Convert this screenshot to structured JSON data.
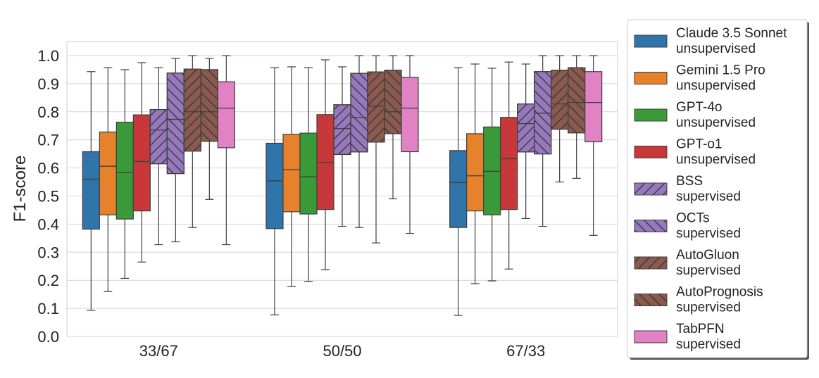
{
  "chart_data": {
    "type": "box",
    "title": "",
    "xlabel": "",
    "ylabel": "F1-score",
    "ylim": [
      0.0,
      1.0
    ],
    "yticks": [
      "0.0",
      "0.1",
      "0.2",
      "0.3",
      "0.4",
      "0.5",
      "0.6",
      "0.7",
      "0.8",
      "0.9",
      "1.0"
    ],
    "grid": "horizontal",
    "legend_position": "right",
    "categories": [
      "33/67",
      "50/50",
      "67/33"
    ],
    "series": [
      {
        "name": "Claude 3.5 Sonnet",
        "sub": "unsupervised",
        "color": "#2f74aa",
        "hatch": "none",
        "boxes": [
          {
            "whislo": 0.093,
            "q1": 0.382,
            "med": 0.56,
            "q3": 0.658,
            "whishi": 0.943
          },
          {
            "whislo": 0.077,
            "q1": 0.384,
            "med": 0.554,
            "q3": 0.688,
            "whishi": 0.957
          },
          {
            "whislo": 0.075,
            "q1": 0.388,
            "med": 0.548,
            "q3": 0.662,
            "whishi": 0.957
          }
        ]
      },
      {
        "name": "Gemini 1.5 Pro",
        "sub": "unsupervised",
        "color": "#e5822b",
        "hatch": "none",
        "boxes": [
          {
            "whislo": 0.16,
            "q1": 0.433,
            "med": 0.606,
            "q3": 0.728,
            "whishi": 0.957
          },
          {
            "whislo": 0.178,
            "q1": 0.444,
            "med": 0.594,
            "q3": 0.72,
            "whishi": 0.96
          },
          {
            "whislo": 0.188,
            "q1": 0.447,
            "med": 0.572,
            "q3": 0.722,
            "whishi": 0.97
          }
        ]
      },
      {
        "name": "GPT-4o",
        "sub": "unsupervised",
        "color": "#3a9a3a",
        "hatch": "none",
        "boxes": [
          {
            "whislo": 0.207,
            "q1": 0.418,
            "med": 0.583,
            "q3": 0.763,
            "whishi": 0.95
          },
          {
            "whislo": 0.196,
            "q1": 0.436,
            "med": 0.569,
            "q3": 0.724,
            "whishi": 0.957
          },
          {
            "whislo": 0.198,
            "q1": 0.433,
            "med": 0.588,
            "q3": 0.746,
            "whishi": 0.955
          }
        ]
      },
      {
        "name": "GPT-o1",
        "sub": "unsupervised",
        "color": "#c8373a",
        "hatch": "none",
        "boxes": [
          {
            "whislo": 0.265,
            "q1": 0.447,
            "med": 0.623,
            "q3": 0.789,
            "whishi": 0.975
          },
          {
            "whislo": 0.238,
            "q1": 0.452,
            "med": 0.62,
            "q3": 0.79,
            "whishi": 0.985
          },
          {
            "whislo": 0.24,
            "q1": 0.452,
            "med": 0.633,
            "q3": 0.78,
            "whishi": 0.977
          }
        ]
      },
      {
        "name": "BSS",
        "sub": "supervised",
        "color": "#9678bc",
        "hatch": "diag-up",
        "boxes": [
          {
            "whislo": 0.327,
            "q1": 0.615,
            "med": 0.735,
            "q3": 0.808,
            "whishi": 0.957
          },
          {
            "whislo": 0.392,
            "q1": 0.648,
            "med": 0.74,
            "q3": 0.825,
            "whishi": 0.96
          },
          {
            "whislo": 0.42,
            "q1": 0.657,
            "med": 0.758,
            "q3": 0.828,
            "whishi": 0.97
          }
        ]
      },
      {
        "name": "OCTs",
        "sub": "supervised",
        "color": "#9678bc",
        "hatch": "diag-down",
        "boxes": [
          {
            "whislo": 0.337,
            "q1": 0.58,
            "med": 0.773,
            "q3": 0.938,
            "whishi": 0.99
          },
          {
            "whislo": 0.388,
            "q1": 0.657,
            "med": 0.78,
            "q3": 0.937,
            "whishi": 1.0
          },
          {
            "whislo": 0.392,
            "q1": 0.65,
            "med": 0.795,
            "q3": 0.943,
            "whishi": 1.0
          }
        ]
      },
      {
        "name": "AutoGluon",
        "sub": "supervised",
        "color": "#8b5a4e",
        "hatch": "diag-up",
        "boxes": [
          {
            "whislo": 0.388,
            "q1": 0.66,
            "med": 0.8,
            "q3": 0.952,
            "whishi": 1.0
          },
          {
            "whislo": 0.333,
            "q1": 0.692,
            "med": 0.82,
            "q3": 0.942,
            "whishi": 1.0
          },
          {
            "whislo": 0.55,
            "q1": 0.738,
            "med": 0.828,
            "q3": 0.948,
            "whishi": 1.0
          }
        ]
      },
      {
        "name": "AutoPrognosis",
        "sub": "supervised",
        "color": "#8b5a4e",
        "hatch": "diag-down",
        "boxes": [
          {
            "whislo": 0.488,
            "q1": 0.695,
            "med": 0.8,
            "q3": 0.95,
            "whishi": 0.99
          },
          {
            "whislo": 0.49,
            "q1": 0.722,
            "med": 0.8,
            "q3": 0.948,
            "whishi": 1.0
          },
          {
            "whislo": 0.563,
            "q1": 0.725,
            "med": 0.833,
            "q3": 0.957,
            "whishi": 1.0
          }
        ]
      },
      {
        "name": "TabPFN",
        "sub": "supervised",
        "color": "#e082c3",
        "hatch": "none",
        "boxes": [
          {
            "whislo": 0.327,
            "q1": 0.672,
            "med": 0.813,
            "q3": 0.907,
            "whishi": 1.0
          },
          {
            "whislo": 0.367,
            "q1": 0.658,
            "med": 0.813,
            "q3": 0.923,
            "whishi": 1.0
          },
          {
            "whislo": 0.36,
            "q1": 0.693,
            "med": 0.833,
            "q3": 0.943,
            "whishi": 1.0
          }
        ]
      }
    ]
  }
}
